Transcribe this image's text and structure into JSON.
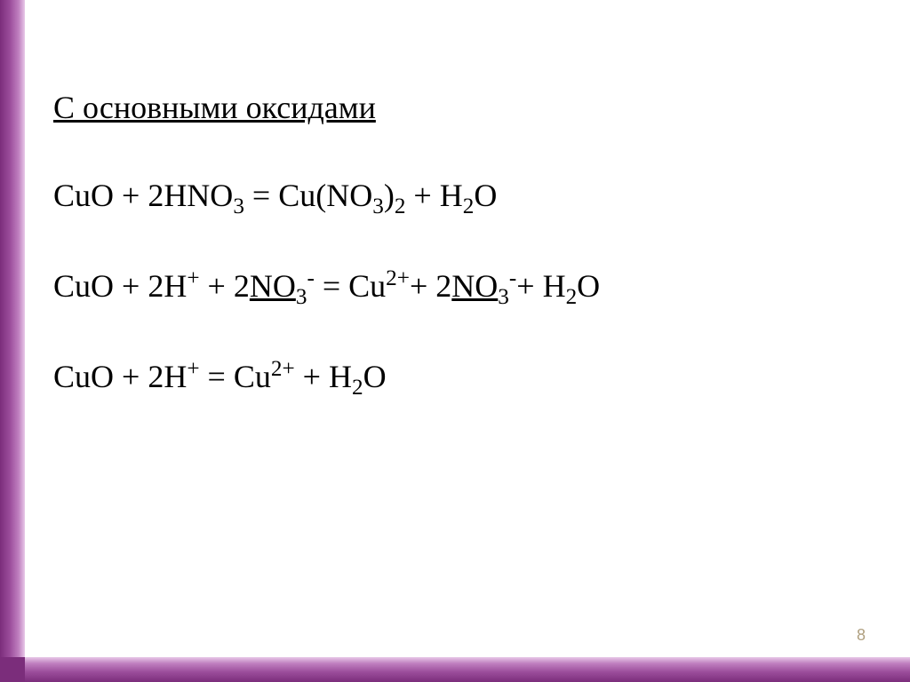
{
  "slide": {
    "heading": "С основными оксидами",
    "page_number": "8",
    "colors": {
      "border_gradient_dark": "#7b2d7b",
      "border_gradient_light": "#e8c8e8",
      "text": "#000000",
      "page_number": "#b0a080",
      "background": "#ffffff"
    },
    "typography": {
      "heading_fontsize": 36,
      "equation_fontsize": 36,
      "font_family": "Times New Roman"
    },
    "equations": [
      {
        "type": "molecular",
        "plain": "CuO + 2HNO3 = Cu(NO3)2 + H2O",
        "tokens": [
          {
            "t": "CuO + 2HNO"
          },
          {
            "t": "3",
            "sub": true
          },
          {
            "t": " = Cu(NO"
          },
          {
            "t": "3",
            "sub": true
          },
          {
            "t": ")"
          },
          {
            "t": "2",
            "sub": true
          },
          {
            "t": " + H"
          },
          {
            "t": "2",
            "sub": true
          },
          {
            "t": "O"
          }
        ]
      },
      {
        "type": "full_ionic",
        "plain": "CuO + 2H+ + 2NO3- = Cu2+ + 2NO3- + H2O",
        "tokens": [
          {
            "t": "CuO + 2H"
          },
          {
            "t": "+",
            "sup": true
          },
          {
            "t": " + 2"
          },
          {
            "t": "NO",
            "u": true
          },
          {
            "t": "3",
            "sub": true,
            "u": true
          },
          {
            "t": "-",
            "sup": true
          },
          {
            "t": " = Cu"
          },
          {
            "t": "2+",
            "sup": true
          },
          {
            "t": "+ 2"
          },
          {
            "t": "NO",
            "u": true
          },
          {
            "t": "3",
            "sub": true,
            "u": true
          },
          {
            "t": "-",
            "sup": true
          },
          {
            "t": "+ H"
          },
          {
            "t": "2",
            "sub": true
          },
          {
            "t": "O"
          }
        ]
      },
      {
        "type": "net_ionic",
        "plain": "CuO + 2H+ = Cu2+ + H2O",
        "tokens": [
          {
            "t": "CuO + 2H"
          },
          {
            "t": "+",
            "sup": true
          },
          {
            "t": " = Cu"
          },
          {
            "t": "2+",
            "sup": true
          },
          {
            "t": " + H"
          },
          {
            "t": "2",
            "sub": true
          },
          {
            "t": "O"
          }
        ]
      }
    ]
  }
}
